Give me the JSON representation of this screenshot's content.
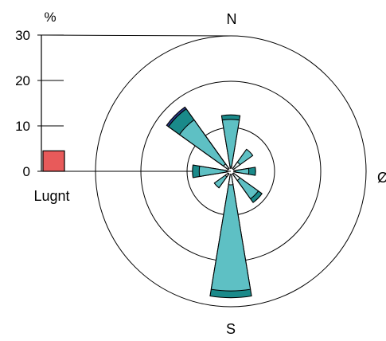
{
  "chart_data": {
    "type": "windrose",
    "unit_label": "%",
    "scale": {
      "ticks": [
        0,
        10,
        20,
        30
      ],
      "max": 30
    },
    "ring_values": [
      10,
      20,
      30
    ],
    "directions": [
      "N",
      "Ø",
      "S"
    ],
    "calm": {
      "label": "Lugnt",
      "value": 4.5,
      "color": "#e85a5a"
    },
    "band_colors": [
      "#e8f4f4",
      "#5ec0c4",
      "#1a8a8a",
      "#2a3a8a"
    ],
    "sectors": [
      {
        "direction_deg": 0,
        "bands": [
          1.0,
          11.5,
          12.5
        ]
      },
      {
        "direction_deg": 45,
        "bands": [
          2.5,
          6.0
        ]
      },
      {
        "direction_deg": 90,
        "bands": [
          1.0,
          4.0,
          5.5
        ]
      },
      {
        "direction_deg": 135,
        "bands": [
          2.5,
          7.5,
          8.5
        ]
      },
      {
        "direction_deg": 180,
        "bands": [
          3.0,
          26.5,
          28.0
        ]
      },
      {
        "direction_deg": 225,
        "bands": [
          1.5,
          4.5
        ]
      },
      {
        "direction_deg": 270,
        "bands": [
          1.0,
          7.0,
          8.5
        ]
      },
      {
        "direction_deg": 315,
        "bands": [
          2.0,
          14.0,
          17.0,
          17.5
        ]
      }
    ]
  }
}
